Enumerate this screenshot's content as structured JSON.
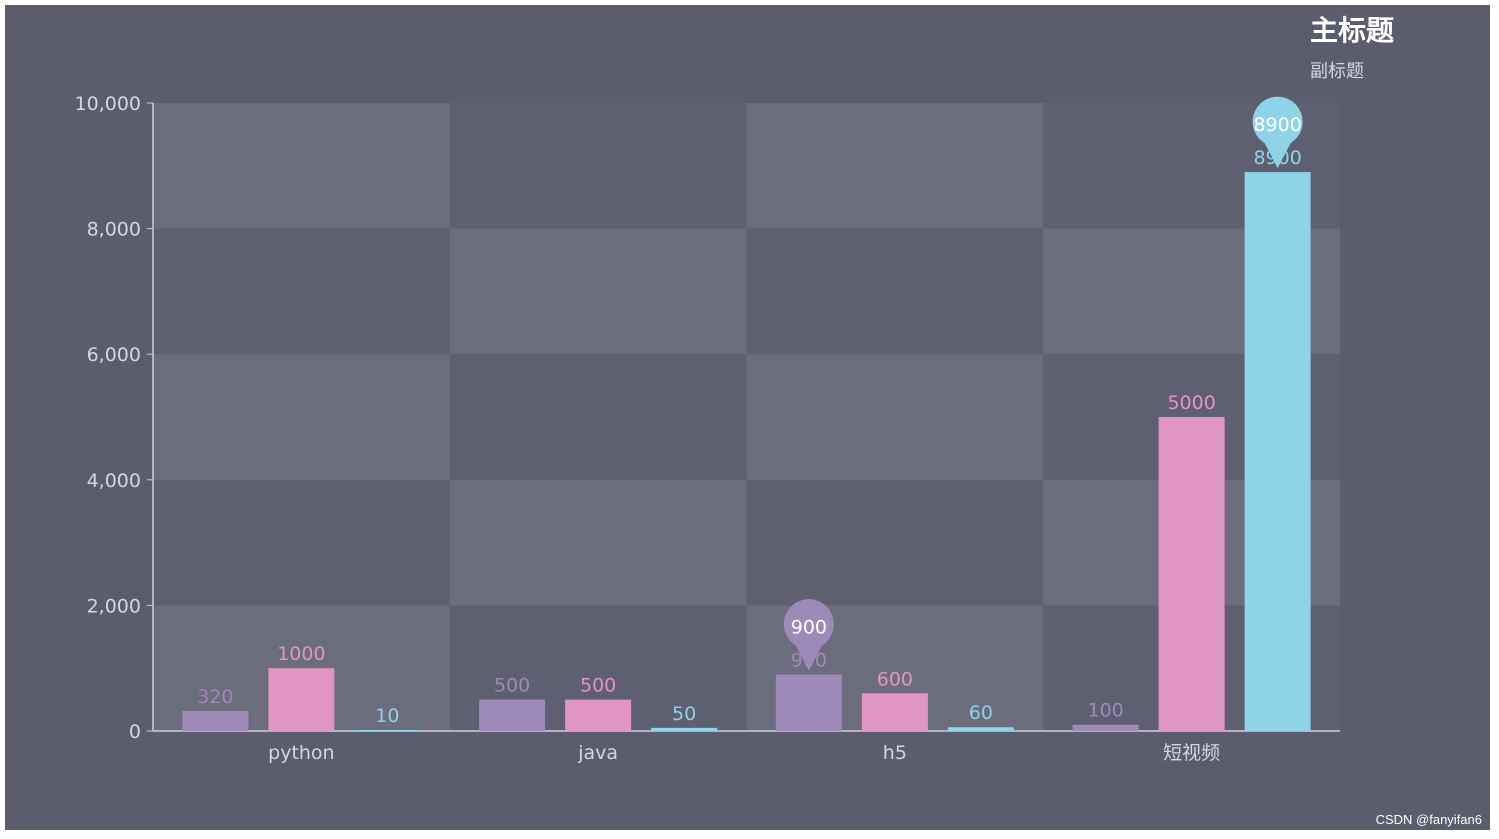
{
  "chart_data": {
    "type": "bar",
    "title": "主标题",
    "subtitle": "副标题",
    "categories": [
      "python",
      "java",
      "h5",
      "短视频"
    ],
    "series": [
      {
        "values": [
          320,
          500,
          900,
          100
        ],
        "color": "#9d8ab9"
      },
      {
        "values": [
          1000,
          500,
          600,
          5000
        ],
        "color": "#e096c4"
      },
      {
        "values": [
          10,
          50,
          60,
          8900
        ],
        "color": "#8ed3e8"
      }
    ],
    "yticks": [
      "0",
      "2,000",
      "4,000",
      "6,000",
      "8,000",
      "10,000"
    ],
    "ylim": [
      0,
      10000
    ],
    "grid": true,
    "markers": [
      {
        "series_index": 0,
        "category": "h5",
        "value": 900,
        "label": "900"
      },
      {
        "series_index": 2,
        "category": "短视频",
        "value": 8900,
        "label": "8900"
      }
    ]
  },
  "watermark": "CSDN @fanyifan6"
}
